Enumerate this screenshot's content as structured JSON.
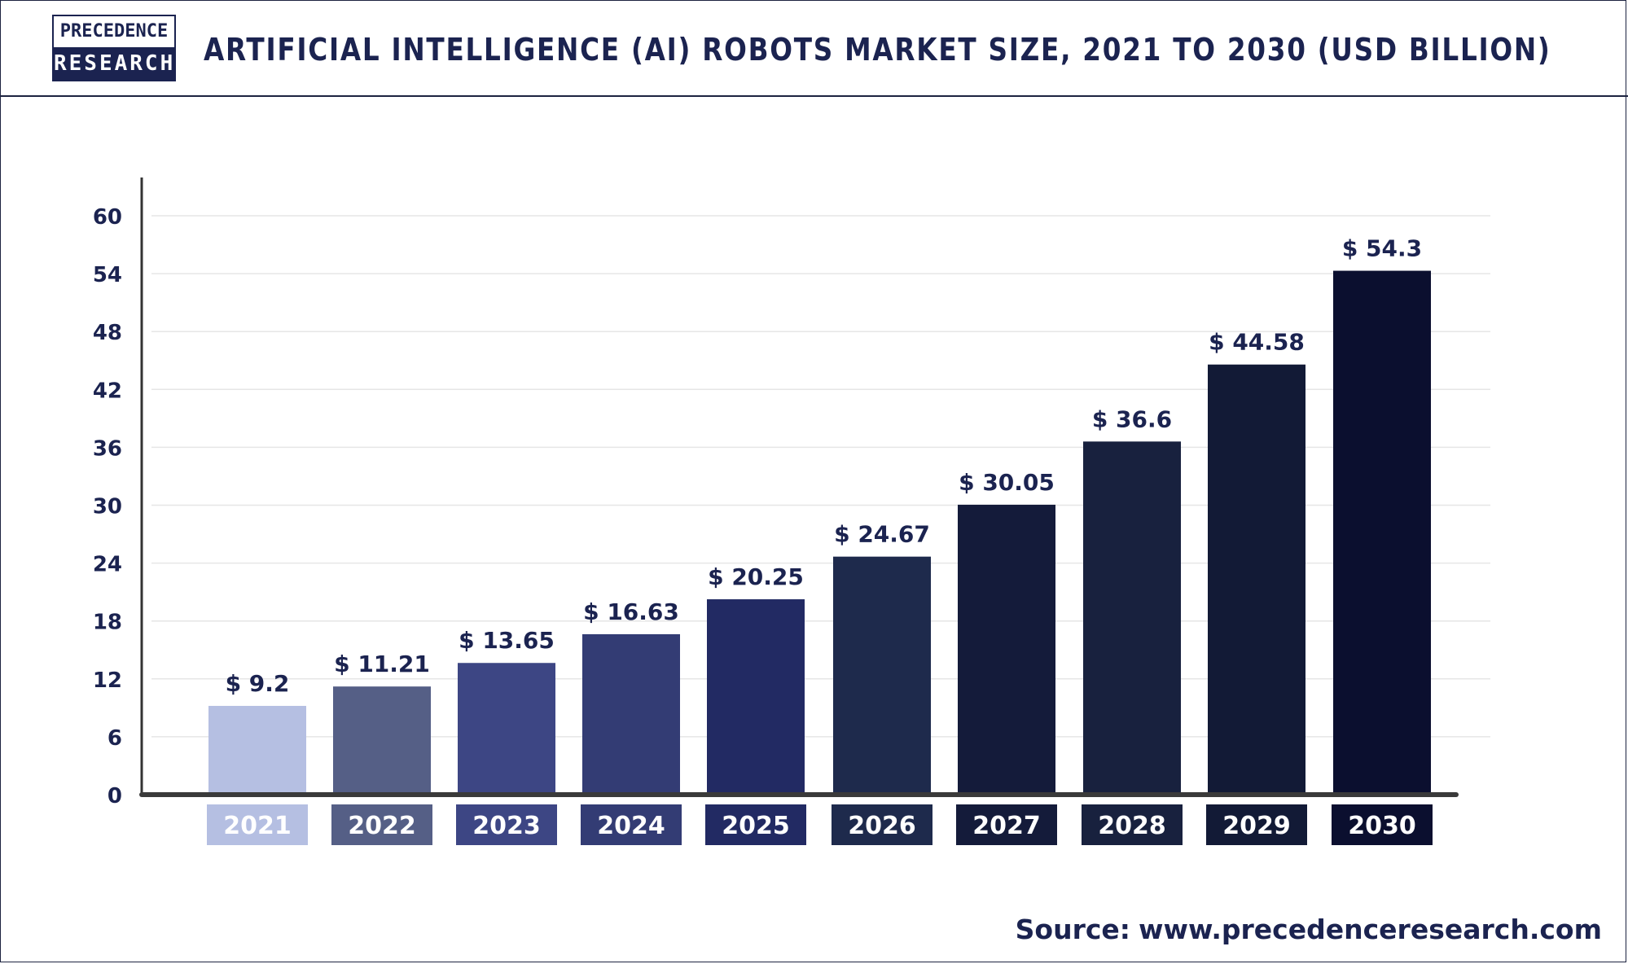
{
  "header": {
    "logo_line1": "PRECEDENCE",
    "logo_line2": "RESEARCH",
    "title": "ARTIFICIAL INTELLIGENCE (AI) ROBOTS MARKET SIZE, 2021 TO 2030 (USD BILLION)"
  },
  "source": {
    "label": "Source:",
    "url": "www.precedenceresearch.com"
  },
  "chart_data": {
    "type": "bar",
    "title": "ARTIFICIAL INTELLIGENCE (AI) ROBOTS MARKET SIZE, 2021 TO 2030 (USD BILLION)",
    "categories": [
      "2021",
      "2022",
      "2023",
      "2024",
      "2025",
      "2026",
      "2027",
      "2028",
      "2029",
      "2030"
    ],
    "values": [
      9.2,
      11.21,
      13.65,
      16.63,
      20.25,
      24.67,
      30.05,
      36.6,
      44.58,
      54.3
    ],
    "data_labels": [
      "$ 9.2",
      "$ 11.21",
      "$ 13.65",
      "$ 16.63",
      "$ 20.25",
      "$ 24.67",
      "$ 30.05",
      "$ 36.6",
      "$ 44.58",
      "$ 54.3"
    ],
    "colors": [
      "#b5bfe2",
      "#555f86",
      "#3d4684",
      "#333c74",
      "#222a63",
      "#1e2a4c",
      "#141b3a",
      "#18213e",
      "#121a36",
      "#0b0f2f"
    ],
    "yticks": [
      0,
      6,
      12,
      18,
      24,
      30,
      36,
      42,
      48,
      54,
      60
    ],
    "ylim": [
      0,
      60
    ],
    "grid": true,
    "legend": "none",
    "xlabel": "",
    "ylabel": ""
  }
}
